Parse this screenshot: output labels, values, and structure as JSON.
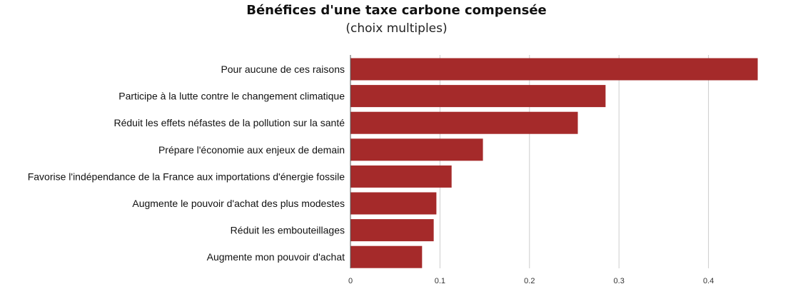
{
  "chart_data": {
    "type": "bar",
    "orientation": "horizontal",
    "title": "Bénéfices d'une taxe carbone compensée",
    "subtitle": "(choix multiples)",
    "categories": [
      "Pour aucune de ces raisons",
      "Participe à la lutte contre le changement climatique",
      "Réduit les effets néfastes de la pollution sur la santé",
      "Prépare l'économie aux enjeux de demain",
      "Favorise l'indépendance de la France aux importations d'énergie fossile",
      "Augmente le pouvoir d'achat des plus modestes",
      "Réduit les embouteillages",
      "Augmente mon pouvoir d'achat"
    ],
    "values": [
      0.455,
      0.285,
      0.254,
      0.148,
      0.113,
      0.096,
      0.093,
      0.08
    ],
    "xlim": [
      0,
      0.46
    ],
    "xticks": [
      "0",
      "0.1",
      "0.2",
      "0.3",
      "0.4"
    ],
    "grid": true,
    "bar_color": "#a52a2a"
  }
}
